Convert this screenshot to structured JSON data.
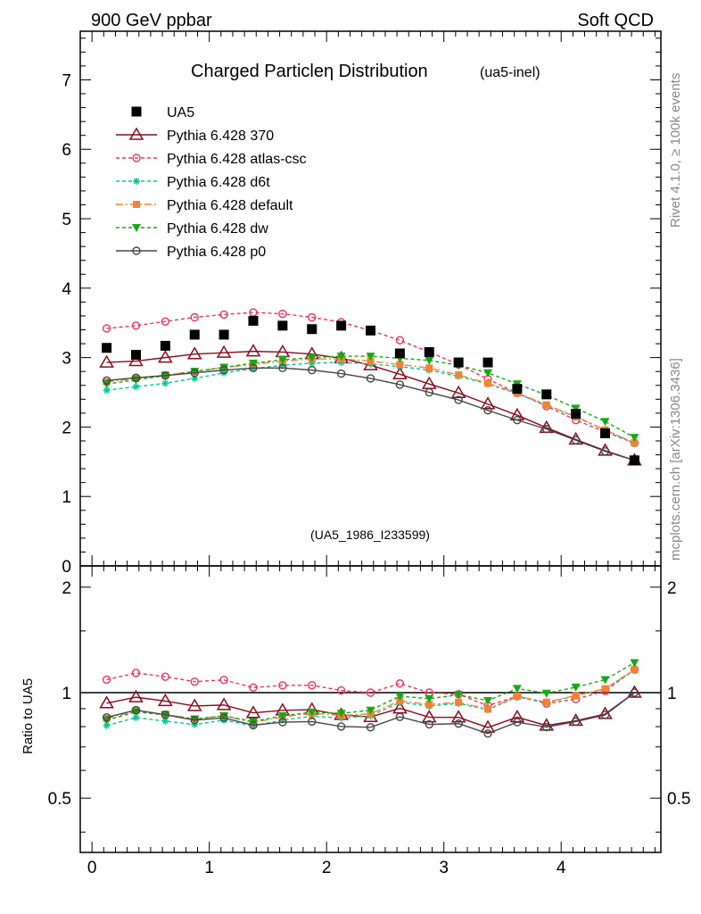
{
  "header": {
    "left": "900 GeV ppbar",
    "right": "Soft QCD"
  },
  "side": {
    "rivet": "Rivet 4.1.0, ≥ 100k events",
    "mcplots": "mcplots.cern.ch [arXiv:1306.3436]"
  },
  "chart_data": {
    "type": "line",
    "title": "Charged Particleη Distribution",
    "title_suffix": "(ua5-inel)",
    "watermark": "(UA5_1986_I233599)",
    "xlabel": "",
    "ylabel": "",
    "ratio_ylabel": "Ratio to UA5",
    "xlim": [
      -0.1,
      4.85
    ],
    "ylim": [
      0,
      7.7
    ],
    "ratio_ylim": [
      0.35,
      2.3
    ],
    "x_ticks": [
      0,
      1,
      2,
      3,
      4
    ],
    "y_ticks": [
      1,
      2,
      3,
      4,
      5,
      6,
      7
    ],
    "y_tick_zero": "0",
    "ratio_ticks": [
      0.5,
      1,
      2
    ],
    "x": [
      0.125,
      0.375,
      0.625,
      0.875,
      1.125,
      1.375,
      1.625,
      1.875,
      2.125,
      2.375,
      2.625,
      2.875,
      3.125,
      3.375,
      3.625,
      3.875,
      4.125,
      4.375,
      4.625
    ],
    "data": {
      "name": "UA5",
      "values": [
        3.14,
        3.04,
        3.17,
        3.33,
        3.33,
        3.53,
        3.46,
        3.41,
        3.46,
        3.39,
        3.06,
        3.08,
        2.93,
        2.93,
        2.55,
        2.47,
        2.19,
        1.91,
        1.52
      ]
    },
    "series": [
      {
        "name": "Pythia 6.428 370",
        "color": "#8b0a1e",
        "dash": "",
        "marker": "triangle-open",
        "values": [
          2.93,
          2.95,
          3.0,
          3.05,
          3.07,
          3.09,
          3.08,
          3.05,
          2.99,
          2.89,
          2.76,
          2.62,
          2.49,
          2.33,
          2.17,
          1.99,
          1.82,
          1.66,
          1.52
        ]
      },
      {
        "name": "Pythia 6.428 atlas-csc",
        "color": "#f0325a",
        "dash": "4,3",
        "marker": "circle-open",
        "values": [
          3.42,
          3.46,
          3.52,
          3.58,
          3.62,
          3.65,
          3.63,
          3.58,
          3.51,
          3.39,
          3.25,
          3.08,
          2.9,
          2.69,
          2.49,
          2.3,
          2.1,
          1.93,
          1.77
        ]
      },
      {
        "name": "Pythia 6.428 d6t",
        "color": "#00c896",
        "dash": "4,3",
        "marker": "star",
        "values": [
          2.53,
          2.58,
          2.63,
          2.7,
          2.78,
          2.84,
          2.89,
          2.92,
          2.93,
          2.91,
          2.87,
          2.82,
          2.73,
          2.62,
          2.48,
          2.32,
          2.14,
          1.96,
          1.76
        ]
      },
      {
        "name": "Pythia 6.428 default",
        "color": "#f58232",
        "dash": "8,3,2,3",
        "marker": "square",
        "values": [
          2.65,
          2.7,
          2.75,
          2.8,
          2.86,
          2.9,
          2.95,
          2.98,
          2.98,
          2.95,
          2.9,
          2.85,
          2.75,
          2.63,
          2.49,
          2.32,
          2.15,
          1.96,
          1.77
        ]
      },
      {
        "name": "Pythia 6.428 dw",
        "color": "#14aa14",
        "dash": "4,3",
        "marker": "triangle-down",
        "values": [
          2.62,
          2.68,
          2.74,
          2.8,
          2.86,
          2.92,
          2.97,
          3.0,
          3.02,
          3.02,
          2.99,
          2.96,
          2.89,
          2.78,
          2.62,
          2.46,
          2.27,
          2.08,
          1.85
        ]
      },
      {
        "name": "Pythia 6.428 p0",
        "color": "#464646",
        "dash": "",
        "marker": "circle-open",
        "values": [
          2.67,
          2.71,
          2.74,
          2.78,
          2.82,
          2.85,
          2.85,
          2.82,
          2.77,
          2.7,
          2.61,
          2.5,
          2.39,
          2.24,
          2.1,
          1.97,
          1.81,
          1.65,
          1.52
        ]
      }
    ]
  }
}
